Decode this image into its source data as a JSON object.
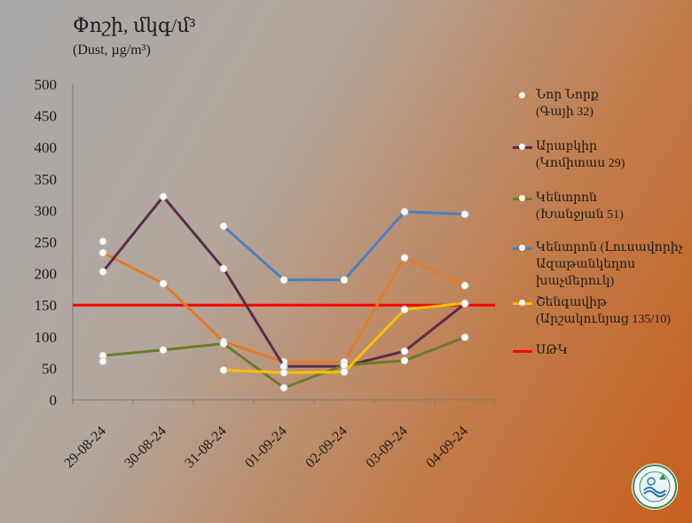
{
  "title": {
    "main": "Փոշի, մկգ/մ³",
    "sub": "(Dust, µg/m³)"
  },
  "legend": [
    {
      "label": "Նոր Նորք\n(Գայի 32)",
      "color": "#e07b2a"
    },
    {
      "label": "Արաբկիր\n(Կոմիտաս 29)",
      "color": "#5b2a4d"
    },
    {
      "label": "Կենտրոն\n(Խանջյան 51)",
      "color": "#6b7a2a"
    },
    {
      "label": "Կենտրոն (Լուսավորիչ\nԱզաթանկեղոս\nխաչմերուկ)",
      "color": "#4a7fc1"
    },
    {
      "label": "Շենգավիթ\n(Արշակունյաց 135/10)",
      "color": "#ffc000"
    },
    {
      "label": "ՍԹԿ",
      "color": "#ff0000"
    }
  ],
  "chart_data": {
    "type": "line",
    "title": "Փոշի, մկգ/մ³",
    "subtitle": "(Dust, µg/m³)",
    "categories": [
      "29-08-24",
      "30-08-24",
      "31-08-24",
      "01-09-24",
      "02-09-24",
      "03-09-24",
      "04-09-24"
    ],
    "ylim": [
      0,
      500
    ],
    "yticks": [
      0,
      50,
      100,
      150,
      200,
      250,
      300,
      350,
      400,
      450,
      500
    ],
    "grid": false,
    "legend_position": "right",
    "series": [
      {
        "name": "Նոր Նորք (Գայի 32)",
        "color": "#e07b2a",
        "values": [
          233,
          184,
          92,
          60,
          60,
          225,
          181
        ]
      },
      {
        "name": "Արաբկիր (Կոմիտաս 29)",
        "color": "#5b2a4d",
        "values": [
          203,
          322,
          208,
          53,
          53,
          77,
          152
        ]
      },
      {
        "name": "Կենտրոն (Խանջյան 51)",
        "color": "#6b7a2a",
        "values": [
          70,
          79,
          89,
          19,
          55,
          62,
          99
        ]
      },
      {
        "name": "Կենտրոն (Լուսավորիչ Ազաթանկեղոս խաչմերուկ)",
        "color": "#4a7fc1",
        "values": [
          251,
          null,
          275,
          190,
          190,
          298,
          294
        ]
      },
      {
        "name": "Շենգավիթ (Արշակունյաց 135/10)",
        "color": "#ffc000",
        "values": [
          61,
          null,
          47,
          43,
          44,
          143,
          153
        ]
      }
    ],
    "reference_line": {
      "name": "ՍԹԿ",
      "value": 150,
      "color": "#ff0000"
    }
  }
}
